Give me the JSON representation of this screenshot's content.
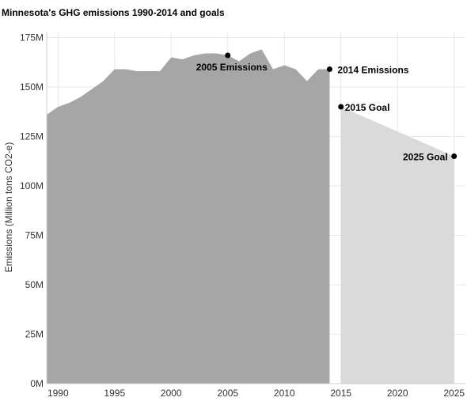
{
  "chart_data": {
    "type": "area",
    "title": "Minnesota's GHG emissions 1990-2014 and goals",
    "xlabel": "",
    "ylabel": "Emissions (Million tons CO2-e)",
    "xlim": [
      1989,
      2026
    ],
    "ylim": [
      0,
      178
    ],
    "x_ticks": [
      1990,
      1995,
      2000,
      2005,
      2010,
      2015,
      2020,
      2025
    ],
    "y_ticks": [
      {
        "value": 0,
        "label": "0M"
      },
      {
        "value": 25,
        "label": "25M"
      },
      {
        "value": 50,
        "label": "50M"
      },
      {
        "value": 75,
        "label": "75M"
      },
      {
        "value": 100,
        "label": "100M"
      },
      {
        "value": 125,
        "label": "125M"
      },
      {
        "value": 150,
        "label": "150M"
      },
      {
        "value": 175,
        "label": "175M"
      }
    ],
    "grid": true,
    "series": [
      {
        "color": "#a6a6a6",
        "x": [
          1989,
          1990,
          1991,
          1992,
          1993,
          1994,
          1995,
          1996,
          1997,
          1998,
          1999,
          2000,
          2001,
          2002,
          2003,
          2004,
          2005,
          2006,
          2007,
          2008,
          2009,
          2010,
          2011,
          2012,
          2013,
          2014
        ],
        "values": [
          136,
          140,
          142,
          145,
          149,
          153,
          159,
          159,
          158,
          158,
          158,
          165,
          164,
          166,
          167,
          167,
          166,
          163,
          167,
          169,
          159,
          161,
          159,
          153,
          159,
          159
        ]
      },
      {
        "color": "#dadada",
        "x": [
          2015,
          2025
        ],
        "values": [
          140,
          115
        ]
      }
    ],
    "annotations": [
      {
        "label": "2005 Emissions",
        "x": 2005,
        "y": 166
      },
      {
        "label": "2014 Emissions",
        "x": 2014,
        "y": 159
      },
      {
        "label": "2015 Goal",
        "x": 2015,
        "y": 140
      },
      {
        "label": "2025 Goal",
        "x": 2025,
        "y": 115
      }
    ],
    "colors": {
      "grid": "#e8e8e8",
      "marker": "#000000"
    }
  }
}
